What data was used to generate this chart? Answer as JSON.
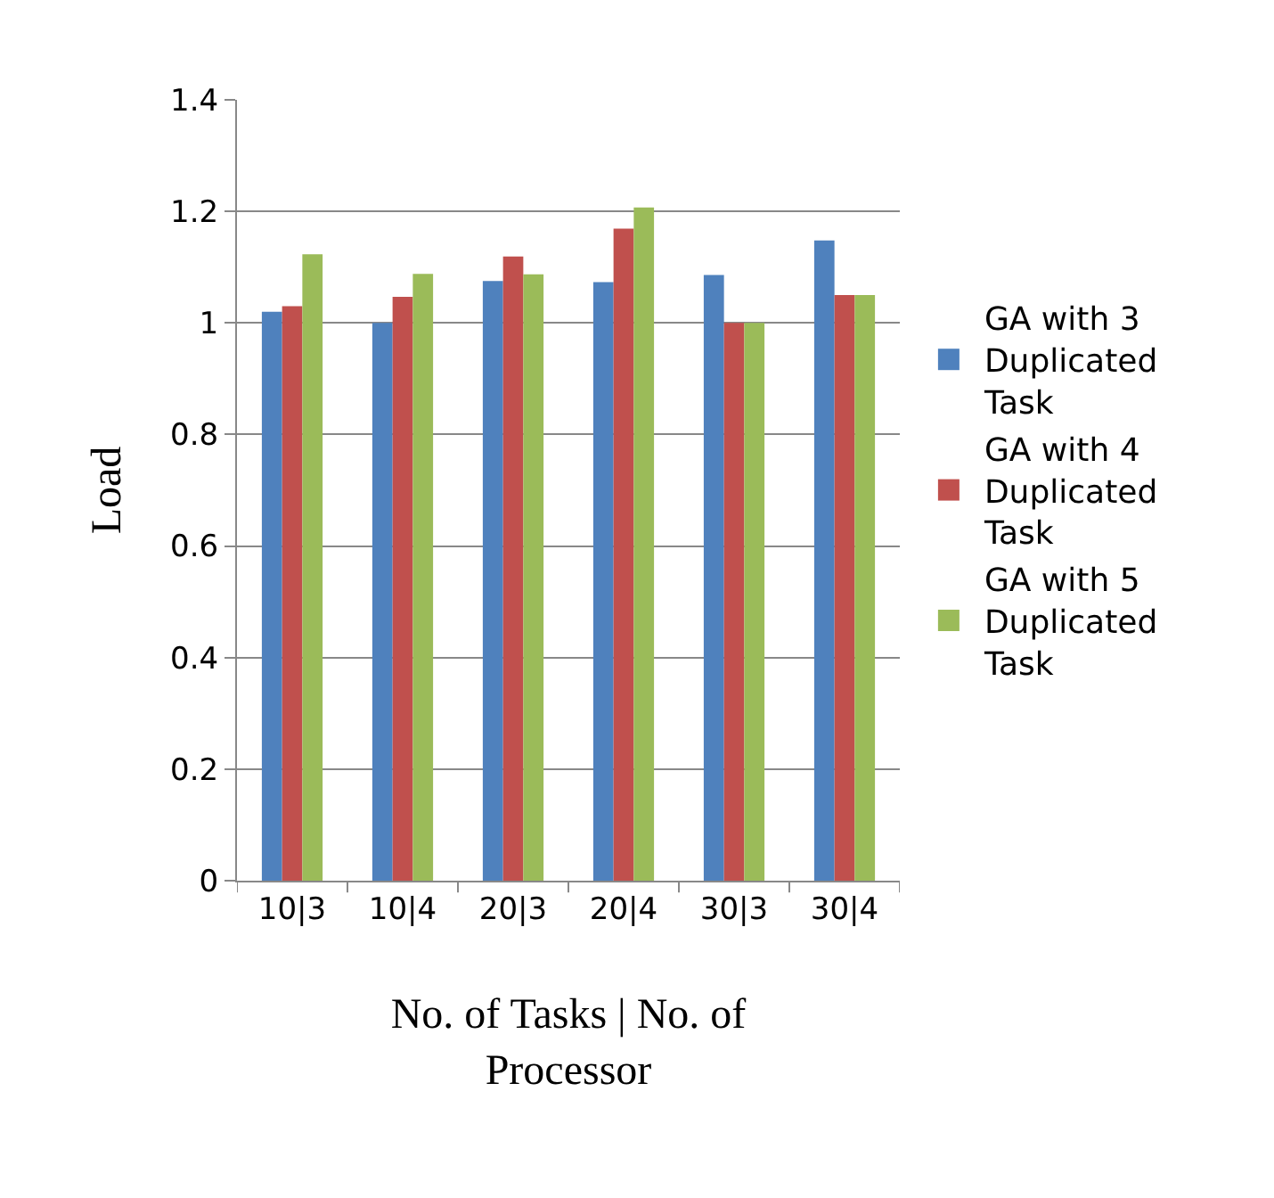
{
  "chart_data": {
    "type": "bar",
    "xlabel": "No. of Tasks | No. of Processor",
    "ylabel": "Load",
    "categories": [
      "10|3",
      "10|4",
      "20|3",
      "20|4",
      "30|3",
      "30|4"
    ],
    "series": [
      {
        "name": "GA with 3 Duplicated Task",
        "color": "#4f81bd",
        "values": [
          1.02,
          1.0,
          1.075,
          1.073,
          1.086,
          1.148
        ]
      },
      {
        "name": "GA with 4 Duplicated Task",
        "color": "#c0504d",
        "values": [
          1.03,
          1.047,
          1.119,
          1.169,
          1.0,
          1.05
        ]
      },
      {
        "name": "GA with 5 Duplicated Task",
        "color": "#9bbb59",
        "values": [
          1.123,
          1.088,
          1.087,
          1.207,
          1.0,
          1.05
        ]
      }
    ],
    "ylim": [
      0,
      1.4
    ],
    "yticks": [
      0,
      0.2,
      0.4,
      0.6,
      0.8,
      1,
      1.2,
      1.4
    ],
    "grid": "y",
    "legend": "right"
  }
}
